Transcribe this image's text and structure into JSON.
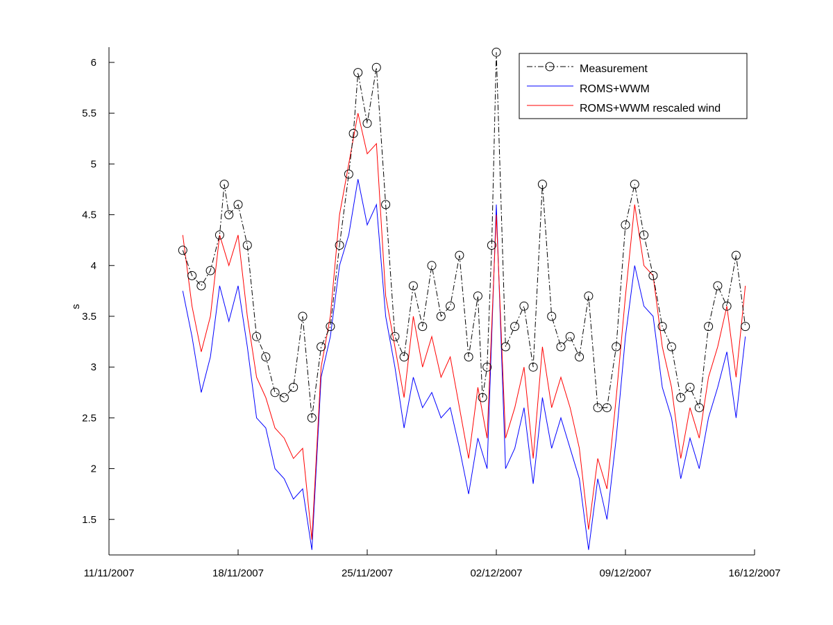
{
  "chart_data": {
    "type": "line",
    "xlabel": "",
    "ylabel": "s",
    "xlim": [
      "2007-11-11",
      "2007-12-16"
    ],
    "ylim": [
      1.15,
      6.15
    ],
    "x_ticks": [
      {
        "date": "2007-11-11",
        "label": "11/11/2007"
      },
      {
        "date": "2007-11-18",
        "label": "18/11/2007"
      },
      {
        "date": "2007-11-25",
        "label": "25/11/2007"
      },
      {
        "date": "2007-12-02",
        "label": "02/12/2007"
      },
      {
        "date": "2007-12-09",
        "label": "09/12/2007"
      },
      {
        "date": "2007-12-16",
        "label": "16/12/2007"
      }
    ],
    "y_ticks": [
      {
        "value": 1.5,
        "label": "1.5"
      },
      {
        "value": 2,
        "label": "2"
      },
      {
        "value": 2.5,
        "label": "2.5"
      },
      {
        "value": 3,
        "label": "3"
      },
      {
        "value": 3.5,
        "label": "3.5"
      },
      {
        "value": 4,
        "label": "4"
      },
      {
        "value": 4.5,
        "label": "4.5"
      },
      {
        "value": 5,
        "label": "5"
      },
      {
        "value": 5.5,
        "label": "5.5"
      },
      {
        "value": 6,
        "label": "6"
      }
    ],
    "grid": false,
    "legend_position": "top-right",
    "series": [
      {
        "name": "Measurement",
        "color": "#000000",
        "style": "dash-dot-circle",
        "x": [
          "2007-11-15T00:00",
          "2007-11-15T12:00",
          "2007-11-16T00:00",
          "2007-11-16T12:00",
          "2007-11-17T00:00",
          "2007-11-17T06:00",
          "2007-11-17T12:00",
          "2007-11-18T00:00",
          "2007-11-18T12:00",
          "2007-11-19T00:00",
          "2007-11-19T12:00",
          "2007-11-20T00:00",
          "2007-11-20T12:00",
          "2007-11-21T00:00",
          "2007-11-21T12:00",
          "2007-11-22T00:00",
          "2007-11-22T12:00",
          "2007-11-23T00:00",
          "2007-11-23T12:00",
          "2007-11-24T00:00",
          "2007-11-24T06:00",
          "2007-11-24T12:00",
          "2007-11-25T00:00",
          "2007-11-25T12:00",
          "2007-11-26T00:00",
          "2007-11-26T12:00",
          "2007-11-27T00:00",
          "2007-11-27T12:00",
          "2007-11-28T00:00",
          "2007-11-28T12:00",
          "2007-11-29T00:00",
          "2007-11-29T12:00",
          "2007-11-30T00:00",
          "2007-11-30T12:00",
          "2007-12-01T00:00",
          "2007-12-01T06:00",
          "2007-12-01T12:00",
          "2007-12-01T18:00",
          "2007-12-02T00:00",
          "2007-12-02T12:00",
          "2007-12-03T00:00",
          "2007-12-03T12:00",
          "2007-12-04T00:00",
          "2007-12-04T12:00",
          "2007-12-05T00:00",
          "2007-12-05T12:00",
          "2007-12-06T00:00",
          "2007-12-06T12:00",
          "2007-12-07T00:00",
          "2007-12-07T12:00",
          "2007-12-08T00:00",
          "2007-12-08T12:00",
          "2007-12-09T00:00",
          "2007-12-09T12:00",
          "2007-12-10T00:00",
          "2007-12-10T12:00",
          "2007-12-11T00:00",
          "2007-12-11T12:00",
          "2007-12-12T00:00",
          "2007-12-12T12:00",
          "2007-12-13T00:00",
          "2007-12-13T12:00",
          "2007-12-14T00:00",
          "2007-12-14T12:00",
          "2007-12-15T00:00",
          "2007-12-15T12:00"
        ],
        "values": [
          4.15,
          3.9,
          3.8,
          3.95,
          4.3,
          4.8,
          4.5,
          4.6,
          4.2,
          3.3,
          3.1,
          2.75,
          2.7,
          2.8,
          3.5,
          2.5,
          3.2,
          3.4,
          4.2,
          4.9,
          5.3,
          5.9,
          5.4,
          5.95,
          4.6,
          3.3,
          3.1,
          3.8,
          3.4,
          4.0,
          3.5,
          3.6,
          4.1,
          3.1,
          3.7,
          2.7,
          3.0,
          4.2,
          6.1,
          3.2,
          3.4,
          3.6,
          3.0,
          4.8,
          3.5,
          3.2,
          3.3,
          3.1,
          3.7,
          2.6,
          2.6,
          3.2,
          4.4,
          4.8,
          4.3,
          3.9,
          3.4,
          3.2,
          2.7,
          2.8,
          2.6,
          3.4,
          3.8,
          3.6,
          4.1,
          3.4
        ]
      },
      {
        "name": "ROMS+WWM",
        "color": "#0000ff",
        "style": "solid",
        "x": [
          "2007-11-15T00:00",
          "2007-11-15T12:00",
          "2007-11-16T00:00",
          "2007-11-16T12:00",
          "2007-11-17T00:00",
          "2007-11-17T12:00",
          "2007-11-18T00:00",
          "2007-11-18T12:00",
          "2007-11-19T00:00",
          "2007-11-19T12:00",
          "2007-11-20T00:00",
          "2007-11-20T12:00",
          "2007-11-21T00:00",
          "2007-11-21T12:00",
          "2007-11-22T00:00",
          "2007-11-22T12:00",
          "2007-11-23T00:00",
          "2007-11-23T12:00",
          "2007-11-24T00:00",
          "2007-11-24T12:00",
          "2007-11-25T00:00",
          "2007-11-25T12:00",
          "2007-11-26T00:00",
          "2007-11-26T12:00",
          "2007-11-27T00:00",
          "2007-11-27T12:00",
          "2007-11-28T00:00",
          "2007-11-28T12:00",
          "2007-11-29T00:00",
          "2007-11-29T12:00",
          "2007-11-30T00:00",
          "2007-11-30T12:00",
          "2007-12-01T00:00",
          "2007-12-01T12:00",
          "2007-12-02T00:00",
          "2007-12-02T12:00",
          "2007-12-03T00:00",
          "2007-12-03T12:00",
          "2007-12-04T00:00",
          "2007-12-04T12:00",
          "2007-12-05T00:00",
          "2007-12-05T12:00",
          "2007-12-06T00:00",
          "2007-12-06T12:00",
          "2007-12-07T00:00",
          "2007-12-07T12:00",
          "2007-12-08T00:00",
          "2007-12-08T12:00",
          "2007-12-09T00:00",
          "2007-12-09T12:00",
          "2007-12-10T00:00",
          "2007-12-10T12:00",
          "2007-12-11T00:00",
          "2007-12-11T12:00",
          "2007-12-12T00:00",
          "2007-12-12T12:00",
          "2007-12-13T00:00",
          "2007-12-13T12:00",
          "2007-12-14T00:00",
          "2007-12-14T12:00",
          "2007-12-15T00:00",
          "2007-12-15T12:00"
        ],
        "values": [
          3.75,
          3.3,
          2.75,
          3.1,
          3.8,
          3.45,
          3.8,
          3.2,
          2.5,
          2.4,
          2.0,
          1.9,
          1.7,
          1.8,
          1.2,
          2.9,
          3.3,
          4.0,
          4.3,
          4.85,
          4.4,
          4.6,
          3.5,
          3.0,
          2.4,
          2.9,
          2.6,
          2.75,
          2.5,
          2.6,
          2.2,
          1.75,
          2.3,
          2.0,
          4.6,
          2.0,
          2.2,
          2.6,
          1.85,
          2.7,
          2.2,
          2.5,
          2.2,
          1.9,
          1.2,
          1.9,
          1.5,
          2.3,
          3.3,
          4.0,
          3.6,
          3.5,
          2.8,
          2.5,
          1.9,
          2.3,
          2.0,
          2.5,
          2.8,
          3.15,
          2.5,
          3.3
        ]
      },
      {
        "name": "ROMS+WWM rescaled wind",
        "color": "#ff0000",
        "style": "solid",
        "x": [
          "2007-11-15T00:00",
          "2007-11-15T12:00",
          "2007-11-16T00:00",
          "2007-11-16T12:00",
          "2007-11-17T00:00",
          "2007-11-17T12:00",
          "2007-11-18T00:00",
          "2007-11-18T12:00",
          "2007-11-19T00:00",
          "2007-11-19T12:00",
          "2007-11-20T00:00",
          "2007-11-20T12:00",
          "2007-11-21T00:00",
          "2007-11-21T12:00",
          "2007-11-22T00:00",
          "2007-11-22T12:00",
          "2007-11-23T00:00",
          "2007-11-23T12:00",
          "2007-11-24T00:00",
          "2007-11-24T12:00",
          "2007-11-25T00:00",
          "2007-11-25T12:00",
          "2007-11-26T00:00",
          "2007-11-26T12:00",
          "2007-11-27T00:00",
          "2007-11-27T12:00",
          "2007-11-28T00:00",
          "2007-11-28T12:00",
          "2007-11-29T00:00",
          "2007-11-29T12:00",
          "2007-11-30T00:00",
          "2007-11-30T12:00",
          "2007-12-01T00:00",
          "2007-12-01T12:00",
          "2007-12-02T00:00",
          "2007-12-02T12:00",
          "2007-12-03T00:00",
          "2007-12-03T12:00",
          "2007-12-04T00:00",
          "2007-12-04T12:00",
          "2007-12-05T00:00",
          "2007-12-05T12:00",
          "2007-12-06T00:00",
          "2007-12-06T12:00",
          "2007-12-07T00:00",
          "2007-12-07T12:00",
          "2007-12-08T00:00",
          "2007-12-08T12:00",
          "2007-12-09T00:00",
          "2007-12-09T12:00",
          "2007-12-10T00:00",
          "2007-12-10T12:00",
          "2007-12-11T00:00",
          "2007-12-11T12:00",
          "2007-12-12T00:00",
          "2007-12-12T12:00",
          "2007-12-13T00:00",
          "2007-12-13T12:00",
          "2007-12-14T00:00",
          "2007-12-14T12:00",
          "2007-12-15T00:00",
          "2007-12-15T12:00"
        ],
        "values": [
          4.3,
          3.6,
          3.15,
          3.5,
          4.3,
          4.0,
          4.3,
          3.5,
          2.9,
          2.7,
          2.4,
          2.3,
          2.1,
          2.2,
          1.3,
          3.0,
          3.5,
          4.5,
          5.0,
          5.5,
          5.1,
          5.2,
          3.7,
          3.2,
          2.7,
          3.5,
          3.0,
          3.3,
          2.9,
          3.1,
          2.6,
          2.1,
          2.8,
          2.3,
          4.5,
          2.3,
          2.6,
          3.0,
          2.1,
          3.2,
          2.6,
          2.9,
          2.6,
          2.2,
          1.4,
          2.1,
          1.8,
          2.7,
          3.7,
          4.6,
          4.0,
          3.9,
          3.2,
          2.8,
          2.1,
          2.6,
          2.3,
          2.9,
          3.2,
          3.6,
          2.9,
          3.8
        ]
      }
    ]
  }
}
